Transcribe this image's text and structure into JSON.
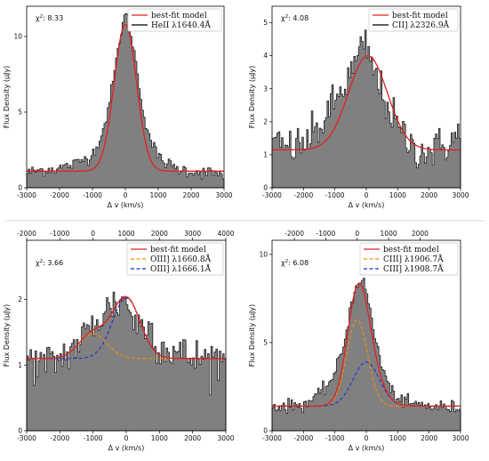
{
  "chart_data": [
    {
      "type": "histogram",
      "ylabel": "Flux Density (μJy)",
      "xlabel": "Δ v (km/s)",
      "xlim": [
        -3000,
        3000
      ],
      "ylim": [
        0,
        12
      ],
      "xticks": [
        -3000,
        -2000,
        -1000,
        0,
        1000,
        2000,
        3000
      ],
      "yticks": [
        0,
        5,
        10
      ],
      "chi2_label": "χ",
      "chi2_sup": "2",
      "chi2_value": ": 8.33",
      "legend": [
        {
          "label": "best-fit model",
          "color": "#e02020",
          "style": "solid"
        },
        {
          "label": "HeII λ1640.4Å",
          "color": "#000000",
          "style": "solid"
        }
      ],
      "model": {
        "continuum": 1.1,
        "components": [
          {
            "amp": 9.7,
            "center": 0,
            "sigma": 340
          }
        ]
      },
      "data_points": [
        [
          -3000,
          1.0
        ],
        [
          -2500,
          1.2
        ],
        [
          -2000,
          1.3
        ],
        [
          -1500,
          1.6
        ],
        [
          -1000,
          2.2
        ],
        [
          -700,
          3.6
        ],
        [
          -500,
          5.4
        ],
        [
          -300,
          8.0
        ],
        [
          -150,
          10.2
        ],
        [
          0,
          11.5
        ],
        [
          100,
          11.0
        ],
        [
          300,
          8.6
        ],
        [
          500,
          5.6
        ],
        [
          700,
          3.6
        ],
        [
          1000,
          2.0
        ],
        [
          1500,
          1.3
        ],
        [
          2000,
          1.1
        ],
        [
          2500,
          1.0
        ],
        [
          3000,
          0.9
        ]
      ]
    },
    {
      "type": "histogram",
      "ylabel": "Flux Density (μJy)",
      "xlabel": "Δ v (km/s)",
      "xlim": [
        -3000,
        3000
      ],
      "ylim": [
        0,
        5.5
      ],
      "xticks": [
        -3000,
        -2000,
        -1000,
        0,
        1000,
        2000,
        3000
      ],
      "yticks": [
        0,
        1,
        2,
        3,
        4,
        5
      ],
      "chi2_label": "χ",
      "chi2_sup": "2",
      "chi2_value": ": 4.08",
      "legend": [
        {
          "label": "best-fit model",
          "color": "#e02020",
          "style": "solid"
        },
        {
          "label": "CII] λ2326.9Å",
          "color": "#000000",
          "style": "solid"
        }
      ],
      "model": {
        "continuum": 1.15,
        "components": [
          {
            "amp": 2.85,
            "center": 50,
            "sigma": 620
          }
        ]
      },
      "data_points": [
        [
          -3000,
          1.3
        ],
        [
          -2500,
          1.2
        ],
        [
          -2000,
          1.3
        ],
        [
          -1500,
          1.8
        ],
        [
          -1000,
          2.6
        ],
        [
          -500,
          3.4
        ],
        [
          -200,
          4.1
        ],
        [
          0,
          4.3
        ],
        [
          200,
          3.6
        ],
        [
          500,
          2.9
        ],
        [
          1000,
          1.8
        ],
        [
          1500,
          1.2
        ],
        [
          2000,
          1.1
        ],
        [
          2500,
          1.3
        ],
        [
          3000,
          1.6
        ]
      ]
    },
    {
      "type": "histogram",
      "ylabel": "Flux Density (μJy)",
      "xlabel": "Δ v (km/s)",
      "xlim": [
        -3000,
        3000
      ],
      "ylim": [
        0,
        2.9
      ],
      "xticks": [
        -3000,
        -2000,
        -1000,
        0,
        1000,
        2000,
        3000
      ],
      "yticks": [
        0,
        1,
        2
      ],
      "top_xticks": [
        -2000,
        -1000,
        0,
        1000,
        2000,
        3000,
        4000
      ],
      "top_offset": -1000,
      "chi2_label": "χ",
      "chi2_sup": "2",
      "chi2_value": ": 3.66",
      "legend": [
        {
          "label": "best-fit model",
          "color": "#e02020",
          "style": "solid"
        },
        {
          "label": "OIII] λ1660.8Å",
          "color": "#ff8c00",
          "style": "dashed"
        },
        {
          "label": "OIII] λ1666.1Å",
          "color": "#1f2fd0",
          "style": "dashed"
        }
      ],
      "model": {
        "continuum": 1.1,
        "components": [
          {
            "amp": 0.38,
            "center": -1000,
            "sigma": 420
          },
          {
            "amp": 0.92,
            "center": 0,
            "sigma": 420
          }
        ]
      },
      "data_points": [
        [
          -3000,
          1.1
        ],
        [
          -2500,
          1.0
        ],
        [
          -2000,
          1.1
        ],
        [
          -1500,
          1.3
        ],
        [
          -1000,
          1.6
        ],
        [
          -500,
          1.9
        ],
        [
          0,
          2.0
        ],
        [
          300,
          1.6
        ],
        [
          700,
          1.6
        ],
        [
          1000,
          1.3
        ],
        [
          1500,
          1.2
        ],
        [
          2000,
          1.1
        ],
        [
          2500,
          1.1
        ],
        [
          3000,
          1.1
        ]
      ]
    },
    {
      "type": "histogram",
      "ylabel": "Flux Density (μJy)",
      "xlabel": "Δ v (km/s)",
      "xlim": [
        -3000,
        3000
      ],
      "ylim": [
        0,
        10.8
      ],
      "xticks": [
        -3000,
        -2000,
        -1000,
        0,
        1000,
        2000,
        3000
      ],
      "yticks": [
        0,
        5,
        10
      ],
      "top_xticks": [
        -2000,
        -1000,
        0,
        1000,
        2000
      ],
      "top_offset": -290,
      "chi2_label": "χ",
      "chi2_sup": "2",
      "chi2_value": ": 6.08",
      "legend": [
        {
          "label": "best-fit model",
          "color": "#e02020",
          "style": "solid"
        },
        {
          "label": "CIII] λ1906.7Å",
          "color": "#ff8c00",
          "style": "dashed"
        },
        {
          "label": "CIII] λ1908.7Å",
          "color": "#1f2fd0",
          "style": "dashed"
        }
      ],
      "model": {
        "continuum": 1.4,
        "components": [
          {
            "amp": 4.9,
            "center": -290,
            "sigma": 330
          },
          {
            "amp": 2.5,
            "center": 0,
            "sigma": 420
          }
        ]
      },
      "data_points": [
        [
          -3000,
          1.4
        ],
        [
          -2500,
          1.4
        ],
        [
          -2000,
          1.5
        ],
        [
          -1500,
          2.0
        ],
        [
          -1000,
          3.2
        ],
        [
          -700,
          5.0
        ],
        [
          -500,
          7.0
        ],
        [
          -300,
          8.4
        ],
        [
          -150,
          8.6
        ],
        [
          0,
          8.0
        ],
        [
          200,
          6.0
        ],
        [
          500,
          3.6
        ],
        [
          800,
          2.2
        ],
        [
          1200,
          1.6
        ],
        [
          2000,
          1.4
        ],
        [
          3000,
          1.3
        ]
      ]
    }
  ]
}
